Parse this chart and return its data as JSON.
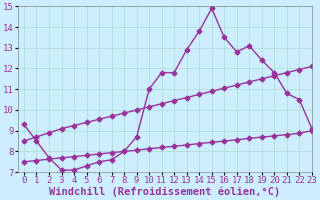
{
  "title": "",
  "xlabel": "Windchill (Refroidissement éolien,°C)",
  "ylabel": "",
  "bg_color": "#cceeff",
  "line_color": "#993399",
  "xlim": [
    -0.5,
    23
  ],
  "ylim": [
    7,
    15
  ],
  "xticks": [
    0,
    1,
    2,
    3,
    4,
    5,
    6,
    7,
    8,
    9,
    10,
    11,
    12,
    13,
    14,
    15,
    16,
    17,
    18,
    19,
    20,
    21,
    22,
    23
  ],
  "yticks": [
    7,
    8,
    9,
    10,
    11,
    12,
    13,
    14,
    15
  ],
  "line1_x": [
    0,
    1,
    2,
    3,
    4,
    5,
    6,
    7,
    8,
    9,
    10,
    11,
    12,
    13,
    14,
    15,
    16,
    17,
    18,
    19,
    20,
    21,
    22,
    23
  ],
  "line1_y": [
    9.3,
    8.5,
    7.7,
    7.1,
    7.1,
    7.3,
    7.5,
    7.6,
    8.0,
    8.7,
    11.0,
    11.8,
    11.8,
    12.9,
    13.8,
    14.9,
    13.5,
    12.8,
    13.1,
    12.4,
    11.8,
    10.8,
    10.5,
    9.1
  ],
  "line2_x": [
    0,
    1,
    2,
    3,
    4,
    5,
    6,
    7,
    8,
    9,
    10,
    11,
    12,
    13,
    14,
    15,
    16,
    17,
    18,
    19,
    20,
    21,
    22,
    23
  ],
  "line2_y": [
    8.5,
    8.7,
    8.9,
    9.1,
    9.25,
    9.4,
    9.55,
    9.7,
    9.85,
    10.0,
    10.15,
    10.3,
    10.45,
    10.6,
    10.75,
    10.9,
    11.05,
    11.2,
    11.35,
    11.5,
    11.65,
    11.8,
    11.95,
    12.1
  ],
  "line3_x": [
    0,
    1,
    2,
    3,
    4,
    5,
    6,
    7,
    8,
    9,
    10,
    11,
    12,
    13,
    14,
    15,
    16,
    17,
    18,
    19,
    20,
    21,
    22,
    23
  ],
  "line3_y": [
    7.5,
    7.56,
    7.63,
    7.69,
    7.75,
    7.81,
    7.88,
    7.94,
    8.0,
    8.06,
    8.13,
    8.19,
    8.25,
    8.31,
    8.38,
    8.44,
    8.5,
    8.56,
    8.63,
    8.69,
    8.75,
    8.81,
    8.88,
    9.0
  ],
  "grid_color": "#aaddcc",
  "marker": "D",
  "marker_size": 2.5,
  "linewidth": 1.0,
  "xlabel_fontsize": 7.5,
  "tick_fontsize": 6.5
}
